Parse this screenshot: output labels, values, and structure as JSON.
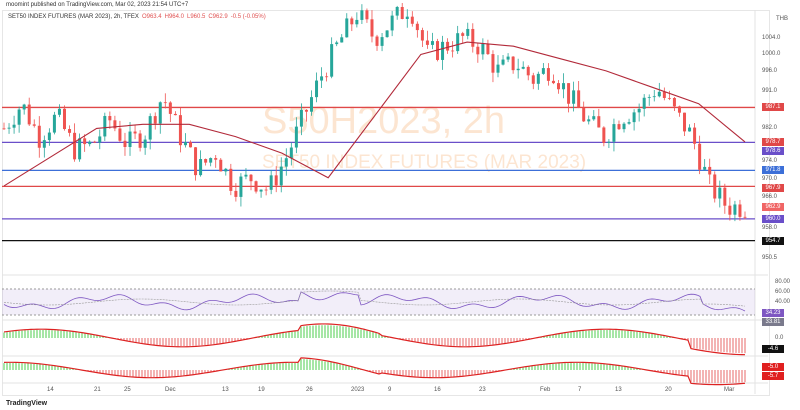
{
  "header": {
    "published": "moomint published on TradingView.com, Mar 02, 2023 21:54 UTC+7",
    "symbol": "SET50 INDEX FUTURES (MAR 2023), 2h, TFEX",
    "open": "O963.4",
    "high": "H964.0",
    "low": "L960.5",
    "close": "C962.9",
    "change": "-0.5 (-0.05%)"
  },
  "watermark": {
    "ticker": "S50H2023, 2h",
    "name": "SET50 INDEX FUTURES (MAR 2023)"
  },
  "currency": "THB",
  "footer": "TradingView",
  "chart_data": {
    "type": "candlestick",
    "price_ticks": [
      1004.0,
      1000.0,
      996.0,
      991.0,
      982.0,
      974.0,
      970.0,
      966.0,
      958.0,
      950.5
    ],
    "ylim": [
      948,
      1012
    ],
    "x_ticks": [
      "14",
      "21",
      "25",
      "Dec",
      "13",
      "19",
      "26",
      "2023",
      "9",
      "16",
      "23",
      "Feb",
      "7",
      "13",
      "20",
      "Mar"
    ],
    "close_path": [
      982,
      988,
      980,
      985,
      977,
      978,
      984,
      978,
      981,
      990,
      980,
      972,
      976,
      968,
      970,
      967,
      975,
      985,
      995,
      1003,
      1010,
      1004,
      1008,
      1012,
      1000,
      1002,
      1004,
      1002,
      996,
      998,
      994,
      997,
      990,
      984,
      980,
      985,
      987,
      992,
      986,
      980,
      968,
      963,
      962.9
    ],
    "moving_average": [
      968,
      975,
      982,
      983,
      983,
      980,
      976,
      970,
      985,
      1000,
      1003,
      1002,
      999,
      996,
      992,
      988,
      978.7
    ],
    "levels": [
      {
        "price": "987.1",
        "color": "#e04848"
      },
      {
        "price": "978.7",
        "color": "#e04848",
        "no_line": true
      },
      {
        "price": "978.6",
        "color": "#6a4fc9"
      },
      {
        "price": "971.8",
        "color": "#3c6fd8"
      },
      {
        "price": "967.9",
        "color": "#e04848"
      },
      {
        "price": "962.9",
        "color": "#f06565",
        "no_line": true
      },
      {
        "price": "960.0",
        "color": "#6a4fc9"
      },
      {
        "price": "954.7",
        "color": "#111111"
      }
    ],
    "rsi": {
      "ticks": [
        "80.00",
        "60.00",
        "40.00"
      ],
      "values": [
        "34.23",
        "33.81"
      ]
    },
    "macd": {
      "zero": "0.0",
      "value": "-4.6"
    },
    "osc2": {
      "values": [
        "-5.0",
        "-5.7"
      ]
    },
    "colors": {
      "up": "#26a69a",
      "down": "#ef5350",
      "ma": "#b22a3a"
    }
  }
}
